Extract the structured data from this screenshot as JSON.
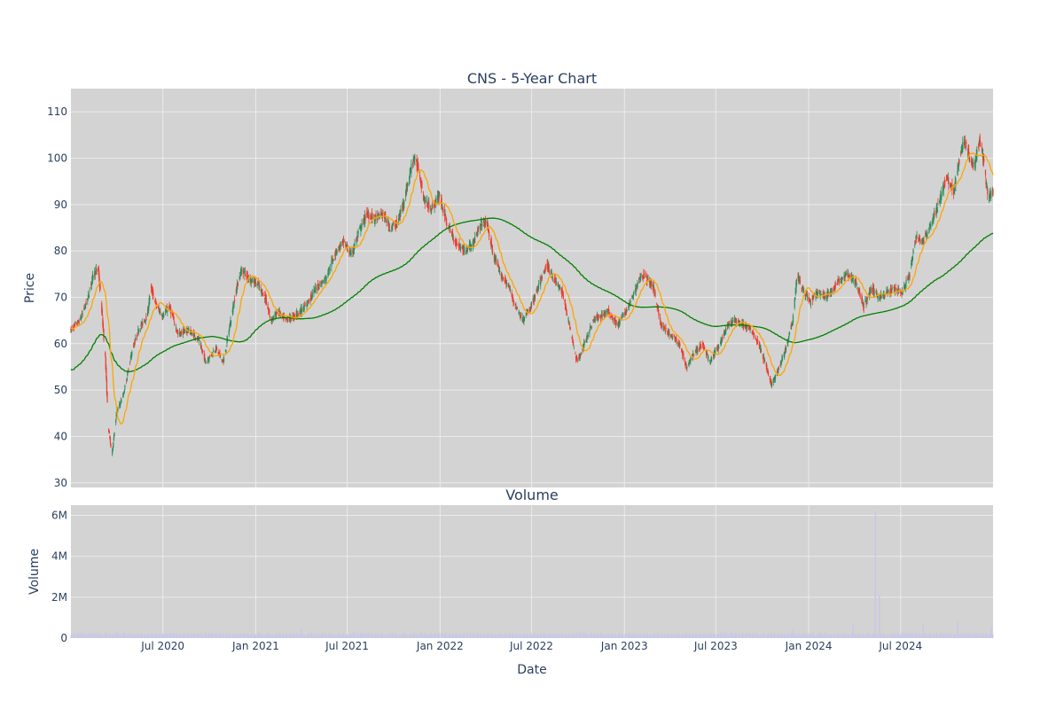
{
  "chart_data": {
    "type": "candlestick",
    "title": "CNS - 5-Year Chart",
    "subplot_title": "Volume",
    "xlabel": "Date",
    "ylabel_price": "Price",
    "ylabel_volume": "Volume",
    "x_range": [
      "2020-01-01",
      "2024-12-31"
    ],
    "x_ticks": [
      {
        "date": "2020-07-01",
        "label": "Jul 2020"
      },
      {
        "date": "2021-01-01",
        "label": "Jan 2021"
      },
      {
        "date": "2021-07-01",
        "label": "Jul 2021"
      },
      {
        "date": "2022-01-01",
        "label": "Jan 2022"
      },
      {
        "date": "2022-07-01",
        "label": "Jul 2022"
      },
      {
        "date": "2023-01-01",
        "label": "Jan 2023"
      },
      {
        "date": "2023-07-01",
        "label": "Jul 2023"
      },
      {
        "date": "2024-01-01",
        "label": "Jan 2024"
      },
      {
        "date": "2024-07-01",
        "label": "Jul 2024"
      }
    ],
    "price_ylim": [
      29,
      115
    ],
    "price_ticks": [
      30,
      40,
      50,
      60,
      70,
      80,
      90,
      100,
      110
    ],
    "volume_ylim": [
      0,
      6500000
    ],
    "volume_ticks": [
      {
        "value": 0,
        "label": "0"
      },
      {
        "value": 2000000,
        "label": "2M"
      },
      {
        "value": 4000000,
        "label": "4M"
      },
      {
        "value": 6000000,
        "label": "6M"
      }
    ],
    "grid": true,
    "colors": {
      "background": "#d3d3d3",
      "grid": "#ebebeb",
      "up": "#2e8b57",
      "down": "#ef3b2c",
      "ma_short": "#ffa500",
      "ma_long": "#008000",
      "volume": "#c8c8e6"
    },
    "price_path": [
      [
        "2020-01-02",
        63
      ],
      [
        "2020-01-20",
        65
      ],
      [
        "2020-02-05",
        70
      ],
      [
        "2020-02-15",
        75
      ],
      [
        "2020-02-25",
        76
      ],
      [
        "2020-03-01",
        70
      ],
      [
        "2020-03-10",
        57
      ],
      [
        "2020-03-16",
        42
      ],
      [
        "2020-03-23",
        36
      ],
      [
        "2020-04-01",
        45
      ],
      [
        "2020-04-15",
        49
      ],
      [
        "2020-05-01",
        58
      ],
      [
        "2020-05-15",
        63
      ],
      [
        "2020-06-01",
        66
      ],
      [
        "2020-06-08",
        72
      ],
      [
        "2020-06-20",
        68
      ],
      [
        "2020-07-01",
        66
      ],
      [
        "2020-07-15",
        68
      ],
      [
        "2020-08-01",
        62
      ],
      [
        "2020-08-20",
        63
      ],
      [
        "2020-09-10",
        61
      ],
      [
        "2020-09-25",
        56
      ],
      [
        "2020-10-15",
        59
      ],
      [
        "2020-10-30",
        56
      ],
      [
        "2020-11-10",
        63
      ],
      [
        "2020-11-25",
        72
      ],
      [
        "2020-12-05",
        76
      ],
      [
        "2020-12-20",
        74
      ],
      [
        "2021-01-05",
        73
      ],
      [
        "2021-01-20",
        70
      ],
      [
        "2021-02-01",
        65
      ],
      [
        "2021-02-15",
        67
      ],
      [
        "2021-03-01",
        65
      ],
      [
        "2021-03-20",
        66
      ],
      [
        "2021-04-10",
        68
      ],
      [
        "2021-05-01",
        72
      ],
      [
        "2021-05-20",
        74
      ],
      [
        "2021-06-10",
        80
      ],
      [
        "2021-06-25",
        82
      ],
      [
        "2021-07-10",
        79
      ],
      [
        "2021-07-25",
        84
      ],
      [
        "2021-08-10",
        88
      ],
      [
        "2021-08-25",
        87
      ],
      [
        "2021-09-10",
        88
      ],
      [
        "2021-09-25",
        85
      ],
      [
        "2021-10-10",
        86
      ],
      [
        "2021-10-25",
        92
      ],
      [
        "2021-11-10",
        100
      ],
      [
        "2021-11-20",
        98
      ],
      [
        "2021-12-01",
        91
      ],
      [
        "2021-12-15",
        89
      ],
      [
        "2022-01-01",
        92
      ],
      [
        "2022-01-15",
        86
      ],
      [
        "2022-02-01",
        82
      ],
      [
        "2022-02-20",
        80
      ],
      [
        "2022-03-10",
        82
      ],
      [
        "2022-03-25",
        86
      ],
      [
        "2022-04-05",
        86
      ],
      [
        "2022-04-15",
        80
      ],
      [
        "2022-05-01",
        75
      ],
      [
        "2022-05-15",
        73
      ],
      [
        "2022-06-01",
        68
      ],
      [
        "2022-06-15",
        65
      ],
      [
        "2022-07-01",
        68
      ],
      [
        "2022-07-15",
        72
      ],
      [
        "2022-08-01",
        77
      ],
      [
        "2022-08-15",
        74
      ],
      [
        "2022-09-01",
        71
      ],
      [
        "2022-09-15",
        64
      ],
      [
        "2022-09-30",
        56
      ],
      [
        "2022-10-15",
        60
      ],
      [
        "2022-11-01",
        65
      ],
      [
        "2022-11-15",
        66
      ],
      [
        "2022-12-01",
        67
      ],
      [
        "2022-12-20",
        64
      ],
      [
        "2023-01-10",
        68
      ],
      [
        "2023-01-25",
        72
      ],
      [
        "2023-02-05",
        75
      ],
      [
        "2023-02-15",
        74
      ],
      [
        "2023-03-01",
        72
      ],
      [
        "2023-03-15",
        64
      ],
      [
        "2023-04-01",
        62
      ],
      [
        "2023-04-20",
        60
      ],
      [
        "2023-05-05",
        55
      ],
      [
        "2023-05-20",
        58
      ],
      [
        "2023-06-05",
        60
      ],
      [
        "2023-06-20",
        56
      ],
      [
        "2023-07-10",
        60
      ],
      [
        "2023-07-25",
        64
      ],
      [
        "2023-08-10",
        65
      ],
      [
        "2023-08-25",
        64
      ],
      [
        "2023-09-10",
        63
      ],
      [
        "2023-09-25",
        60
      ],
      [
        "2023-10-10",
        55
      ],
      [
        "2023-10-20",
        51
      ],
      [
        "2023-11-01",
        54
      ],
      [
        "2023-11-15",
        58
      ],
      [
        "2023-12-01",
        65
      ],
      [
        "2023-12-10",
        75
      ],
      [
        "2023-12-20",
        72
      ],
      [
        "2024-01-05",
        69
      ],
      [
        "2024-01-20",
        71
      ],
      [
        "2024-02-05",
        70
      ],
      [
        "2024-02-20",
        72
      ],
      [
        "2024-03-05",
        74
      ],
      [
        "2024-03-20",
        75
      ],
      [
        "2024-04-05",
        73
      ],
      [
        "2024-04-20",
        68
      ],
      [
        "2024-05-05",
        72
      ],
      [
        "2024-05-20",
        70
      ],
      [
        "2024-06-05",
        71
      ],
      [
        "2024-06-20",
        72
      ],
      [
        "2024-07-05",
        71
      ],
      [
        "2024-07-20",
        75
      ],
      [
        "2024-08-01",
        83
      ],
      [
        "2024-08-15",
        82
      ],
      [
        "2024-09-01",
        86
      ],
      [
        "2024-09-15",
        90
      ],
      [
        "2024-10-01",
        96
      ],
      [
        "2024-10-15",
        93
      ],
      [
        "2024-10-25",
        99
      ],
      [
        "2024-11-05",
        104
      ],
      [
        "2024-11-15",
        100
      ],
      [
        "2024-11-25",
        98
      ],
      [
        "2024-12-05",
        104
      ],
      [
        "2024-12-15",
        98
      ],
      [
        "2024-12-22",
        91
      ],
      [
        "2024-12-31",
        93
      ]
    ],
    "volume_spikes": [
      {
        "date": "2021-04-01",
        "value": 550000
      },
      {
        "date": "2023-12-01",
        "value": 450000
      },
      {
        "date": "2024-03-29",
        "value": 650000
      },
      {
        "date": "2024-05-12",
        "value": 6200000
      },
      {
        "date": "2024-05-20",
        "value": 2100000
      },
      {
        "date": "2024-08-15",
        "value": 650000
      },
      {
        "date": "2024-10-22",
        "value": 800000
      },
      {
        "date": "2024-12-28",
        "value": 550000
      }
    ]
  }
}
